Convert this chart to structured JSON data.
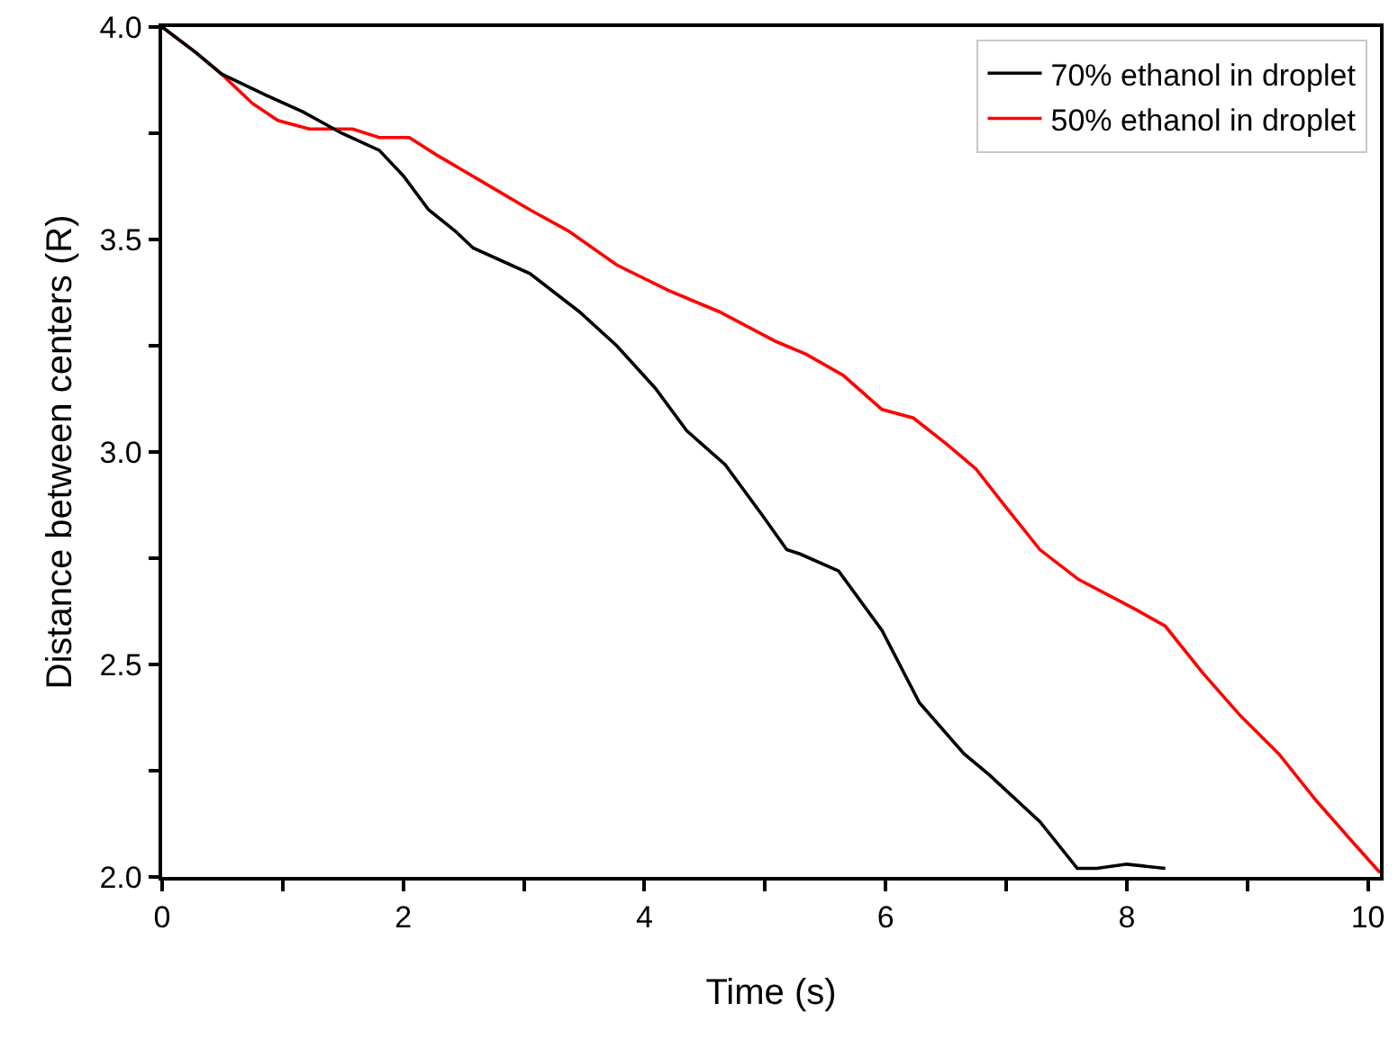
{
  "chart_data": {
    "type": "line",
    "xlabel": "Time (s)",
    "ylabel": "Distance between centers (R)",
    "xlim": [
      0,
      10.1
    ],
    "ylim": [
      2,
      4
    ],
    "xticks": [
      0,
      {
        "value": 1,
        "label": null
      },
      2,
      {
        "value": 3,
        "label": null
      },
      4,
      {
        "value": 5,
        "label": null
      },
      6,
      {
        "value": 7,
        "label": null
      },
      8,
      {
        "value": 9,
        "label": null
      },
      10
    ],
    "yticks": [
      "2.0",
      {
        "value": 2.25,
        "label": null
      },
      2.5,
      {
        "value": 2.75,
        "label": null
      },
      "3.0",
      {
        "value": 3.25,
        "label": null
      },
      3.5,
      {
        "value": 3.75,
        "label": null
      },
      "4.0"
    ],
    "grid": false,
    "legend": "top right",
    "marker": "none",
    "line_style": "solid",
    "series": [
      {
        "name": "70% ethanol in droplet",
        "color": "#000000",
        "x": [
          0,
          0.28,
          0.49,
          0.86,
          1.17,
          1.49,
          1.8,
          2.0,
          2.21,
          2.43,
          2.58,
          3.05,
          3.46,
          3.77,
          4.09,
          4.35,
          4.67,
          4.98,
          5.18,
          5.29,
          5.61,
          5.97,
          6.28,
          6.65,
          6.86,
          7.28,
          7.59,
          7.75,
          8.0,
          8.32
        ],
        "values": [
          4.0,
          3.94,
          3.89,
          3.84,
          3.8,
          3.75,
          3.71,
          3.65,
          3.57,
          3.52,
          3.48,
          3.42,
          3.33,
          3.25,
          3.15,
          3.05,
          2.97,
          2.85,
          2.77,
          2.76,
          2.72,
          2.58,
          2.41,
          2.29,
          2.24,
          2.13,
          2.02,
          2.02,
          2.03,
          2.02
        ]
      },
      {
        "name": "50% ethanol in droplet",
        "color": "#ff0000",
        "x": [
          0,
          0.28,
          0.49,
          0.75,
          0.96,
          1.22,
          1.43,
          1.58,
          1.8,
          2.05,
          2.27,
          2.63,
          3.05,
          3.37,
          3.77,
          4.2,
          4.62,
          5.09,
          5.34,
          5.65,
          5.97,
          6.23,
          6.5,
          6.75,
          6.97,
          7.28,
          7.6,
          8.07,
          8.32,
          8.63,
          8.94,
          9.26,
          9.57,
          9.88,
          10.1
        ],
        "values": [
          4.0,
          3.94,
          3.89,
          3.82,
          3.78,
          3.76,
          3.76,
          3.76,
          3.74,
          3.74,
          3.7,
          3.64,
          3.57,
          3.52,
          3.44,
          3.38,
          3.33,
          3.26,
          3.23,
          3.18,
          3.1,
          3.08,
          3.02,
          2.96,
          2.88,
          2.77,
          2.7,
          2.63,
          2.59,
          2.48,
          2.38,
          2.29,
          2.18,
          2.08,
          2.01
        ]
      }
    ]
  }
}
